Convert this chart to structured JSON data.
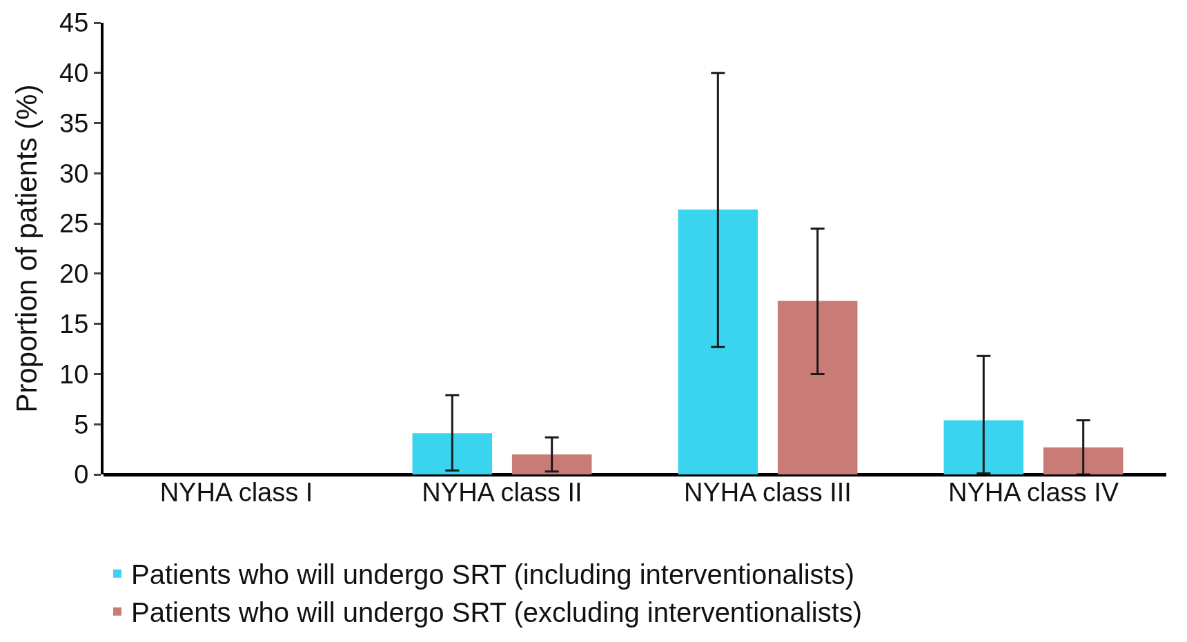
{
  "chart_data": {
    "type": "bar",
    "ylabel": "Proportion of patients (%)",
    "categories": [
      "NYHA class I",
      "NYHA class II",
      "NYHA class III",
      "NYHA class IV"
    ],
    "series": [
      {
        "name": "Patients who will undergo SRT (including interventionalists)",
        "color": "#3ad4ee",
        "values": [
          null,
          4.1,
          26.4,
          5.4
        ],
        "errors": [
          null,
          [
            0.4,
            7.9
          ],
          [
            12.7,
            40.0
          ],
          [
            0.1,
            11.8
          ]
        ]
      },
      {
        "name": "Patients who will undergo SRT (excluding interventionalists)",
        "color": "#c97b76",
        "values": [
          null,
          2.0,
          17.3,
          2.7
        ],
        "errors": [
          null,
          [
            0.3,
            3.7
          ],
          [
            10.0,
            24.5
          ],
          [
            0,
            5.4
          ]
        ]
      }
    ],
    "ylim": [
      0,
      45
    ],
    "yticks": [
      0,
      5,
      10,
      15,
      20,
      25,
      30,
      35,
      40,
      45
    ],
    "grid": false,
    "legend": "bottom left"
  }
}
